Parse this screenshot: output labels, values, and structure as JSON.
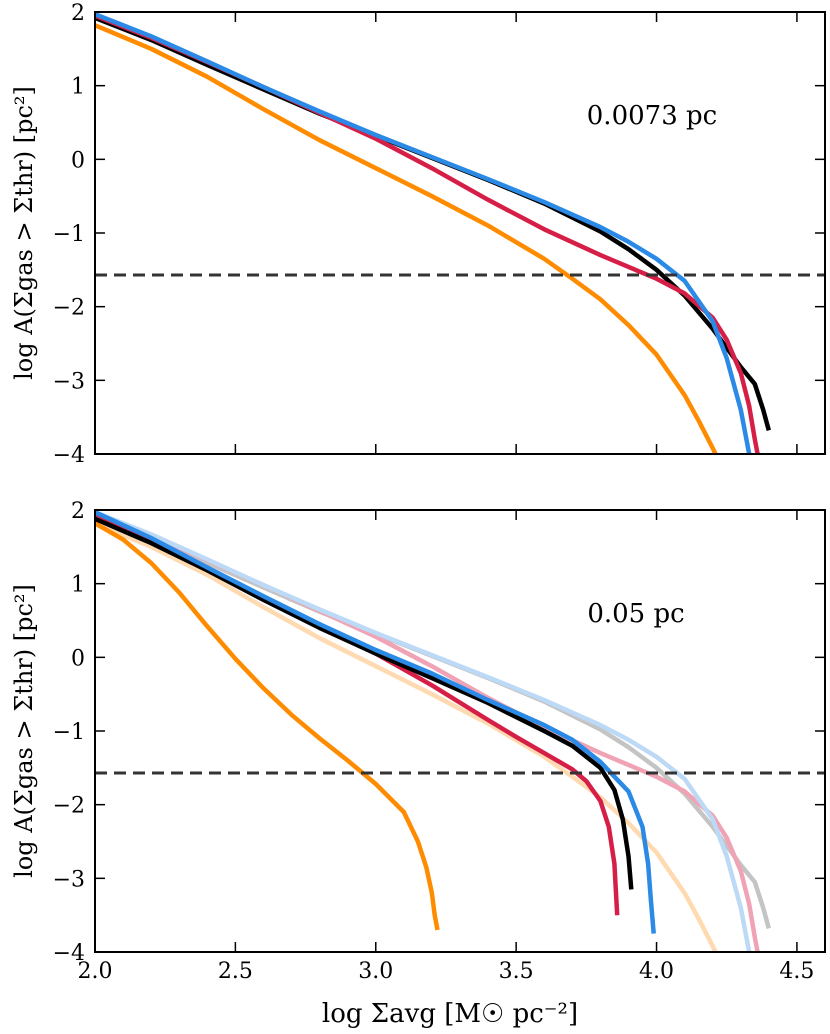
{
  "colors": {
    "black": "#000000",
    "blue": "#2b8ae6",
    "red": "#d51f47",
    "orange": "#ff8c00",
    "light_blue": "#bcd9f6",
    "light_red": "#f0a3b5",
    "light_orange": "#ffd9b0",
    "gray": "#c4c4c4",
    "threshold": "#333333"
  },
  "chart_data": [
    {
      "type": "line",
      "annotation": "0.0073 pc",
      "xlabel": "",
      "ylabel": "log A(Σgas > Σthr) [pc²]",
      "xlim": [
        2.0,
        4.6
      ],
      "ylim": [
        -4,
        2
      ],
      "x_ticks": [
        "2.0",
        "2.5",
        "3.0",
        "3.5",
        "4.0",
        "4.5"
      ],
      "y_ticks": [
        "2",
        "1",
        "0",
        "−1",
        "−2",
        "−3",
        "−4"
      ],
      "threshold_y": -1.57,
      "series": [
        {
          "color_key": "orange",
          "x": [
            2.0,
            2.2,
            2.4,
            2.6,
            2.8,
            3.0,
            3.2,
            3.4,
            3.6,
            3.7,
            3.8,
            3.9,
            4.0,
            4.1,
            4.15,
            4.2,
            4.21
          ],
          "y": [
            1.82,
            1.5,
            1.12,
            0.68,
            0.26,
            -0.12,
            -0.5,
            -0.9,
            -1.35,
            -1.62,
            -1.9,
            -2.25,
            -2.65,
            -3.2,
            -3.55,
            -3.92,
            -4.0
          ]
        },
        {
          "color_key": "black",
          "x": [
            2.0,
            2.2,
            2.4,
            2.6,
            2.8,
            3.0,
            3.2,
            3.4,
            3.6,
            3.8,
            3.9,
            4.0,
            4.1,
            4.2,
            4.3,
            4.35,
            4.38,
            4.4
          ],
          "y": [
            1.92,
            1.62,
            1.28,
            0.95,
            0.62,
            0.32,
            0.02,
            -0.28,
            -0.6,
            -0.98,
            -1.22,
            -1.5,
            -1.85,
            -2.3,
            -2.82,
            -3.05,
            -3.4,
            -3.68
          ]
        },
        {
          "color_key": "red",
          "x": [
            2.0,
            2.2,
            2.4,
            2.6,
            2.8,
            3.0,
            3.2,
            3.4,
            3.6,
            3.8,
            4.0,
            4.1,
            4.2,
            4.25,
            4.3,
            4.33,
            4.35,
            4.36
          ],
          "y": [
            1.95,
            1.65,
            1.32,
            0.98,
            0.63,
            0.28,
            -0.12,
            -0.55,
            -0.95,
            -1.3,
            -1.62,
            -1.82,
            -2.15,
            -2.45,
            -2.9,
            -3.35,
            -3.8,
            -4.0
          ]
        },
        {
          "color_key": "blue",
          "x": [
            2.0,
            2.2,
            2.4,
            2.6,
            2.8,
            3.0,
            3.2,
            3.4,
            3.6,
            3.8,
            3.9,
            4.0,
            4.1,
            4.2,
            4.25,
            4.3,
            4.32,
            4.33
          ],
          "y": [
            1.97,
            1.67,
            1.33,
            0.98,
            0.65,
            0.33,
            0.03,
            -0.27,
            -0.58,
            -0.92,
            -1.12,
            -1.35,
            -1.65,
            -2.2,
            -2.7,
            -3.4,
            -3.8,
            -4.0
          ]
        }
      ]
    },
    {
      "type": "line",
      "annotation": "0.05 pc",
      "xlabel": "log Σavg [M☉ pc⁻²]",
      "ylabel": "log A(Σgas > Σthr) [pc²]",
      "xlim": [
        2.0,
        4.6
      ],
      "ylim": [
        -4,
        2
      ],
      "x_ticks": [
        "2.0",
        "2.5",
        "3.0",
        "3.5",
        "4.0",
        "4.5"
      ],
      "y_ticks": [
        "2",
        "1",
        "0",
        "−1",
        "−2",
        "−3",
        "−4"
      ],
      "threshold_y": -1.57,
      "series": [
        {
          "color_key": "light_orange",
          "x": [
            2.0,
            2.2,
            2.4,
            2.6,
            2.8,
            3.0,
            3.2,
            3.4,
            3.6,
            3.7,
            3.8,
            3.9,
            4.0,
            4.1,
            4.15,
            4.2,
            4.21
          ],
          "y": [
            1.82,
            1.5,
            1.12,
            0.68,
            0.26,
            -0.12,
            -0.5,
            -0.9,
            -1.35,
            -1.62,
            -1.9,
            -2.25,
            -2.65,
            -3.2,
            -3.55,
            -3.92,
            -4.0
          ]
        },
        {
          "color_key": "gray",
          "x": [
            2.0,
            2.2,
            2.4,
            2.6,
            2.8,
            3.0,
            3.2,
            3.4,
            3.6,
            3.8,
            3.9,
            4.0,
            4.1,
            4.2,
            4.3,
            4.35,
            4.38,
            4.4
          ],
          "y": [
            1.92,
            1.62,
            1.28,
            0.95,
            0.62,
            0.32,
            0.02,
            -0.28,
            -0.6,
            -0.98,
            -1.22,
            -1.5,
            -1.85,
            -2.3,
            -2.82,
            -3.05,
            -3.4,
            -3.68
          ]
        },
        {
          "color_key": "light_red",
          "x": [
            2.0,
            2.2,
            2.4,
            2.6,
            2.8,
            3.0,
            3.2,
            3.4,
            3.6,
            3.8,
            4.0,
            4.1,
            4.2,
            4.25,
            4.3,
            4.33,
            4.35,
            4.36
          ],
          "y": [
            1.95,
            1.65,
            1.32,
            0.98,
            0.63,
            0.28,
            -0.12,
            -0.55,
            -0.95,
            -1.3,
            -1.62,
            -1.82,
            -2.15,
            -2.45,
            -2.9,
            -3.35,
            -3.8,
            -4.0
          ]
        },
        {
          "color_key": "light_blue",
          "x": [
            2.0,
            2.2,
            2.4,
            2.6,
            2.8,
            3.0,
            3.2,
            3.4,
            3.6,
            3.8,
            3.9,
            4.0,
            4.1,
            4.2,
            4.25,
            4.3,
            4.32,
            4.33
          ],
          "y": [
            1.97,
            1.67,
            1.33,
            0.98,
            0.65,
            0.33,
            0.03,
            -0.27,
            -0.58,
            -0.92,
            -1.12,
            -1.35,
            -1.65,
            -2.2,
            -2.7,
            -3.4,
            -3.8,
            -4.0
          ]
        },
        {
          "color_key": "orange",
          "x": [
            2.0,
            2.1,
            2.2,
            2.3,
            2.4,
            2.5,
            2.6,
            2.7,
            2.8,
            2.9,
            3.0,
            3.1,
            3.15,
            3.18,
            3.2,
            3.21,
            3.22
          ],
          "y": [
            1.82,
            1.6,
            1.28,
            0.88,
            0.42,
            -0.02,
            -0.42,
            -0.78,
            -1.1,
            -1.4,
            -1.72,
            -2.1,
            -2.5,
            -2.85,
            -3.2,
            -3.5,
            -3.7
          ]
        },
        {
          "color_key": "red",
          "x": [
            2.0,
            2.2,
            2.4,
            2.6,
            2.8,
            3.0,
            3.2,
            3.4,
            3.5,
            3.6,
            3.7,
            3.75,
            3.8,
            3.83,
            3.85,
            3.86
          ],
          "y": [
            1.95,
            1.6,
            1.2,
            0.8,
            0.42,
            0.05,
            -0.38,
            -0.85,
            -1.08,
            -1.3,
            -1.52,
            -1.68,
            -1.95,
            -2.3,
            -2.8,
            -3.5
          ]
        },
        {
          "color_key": "black",
          "x": [
            2.0,
            2.2,
            2.4,
            2.6,
            2.8,
            3.0,
            3.2,
            3.4,
            3.6,
            3.7,
            3.8,
            3.85,
            3.88,
            3.9,
            3.91
          ],
          "y": [
            1.88,
            1.55,
            1.18,
            0.78,
            0.4,
            0.05,
            -0.28,
            -0.62,
            -1.0,
            -1.2,
            -1.5,
            -1.8,
            -2.2,
            -2.7,
            -3.15
          ]
        },
        {
          "color_key": "blue",
          "x": [
            2.0,
            2.2,
            2.4,
            2.6,
            2.8,
            3.0,
            3.2,
            3.4,
            3.6,
            3.7,
            3.8,
            3.9,
            3.95,
            3.97,
            3.98,
            3.99
          ],
          "y": [
            1.97,
            1.62,
            1.22,
            0.83,
            0.45,
            0.1,
            -0.22,
            -0.58,
            -0.92,
            -1.12,
            -1.42,
            -1.82,
            -2.3,
            -2.8,
            -3.3,
            -3.75
          ]
        }
      ]
    }
  ]
}
